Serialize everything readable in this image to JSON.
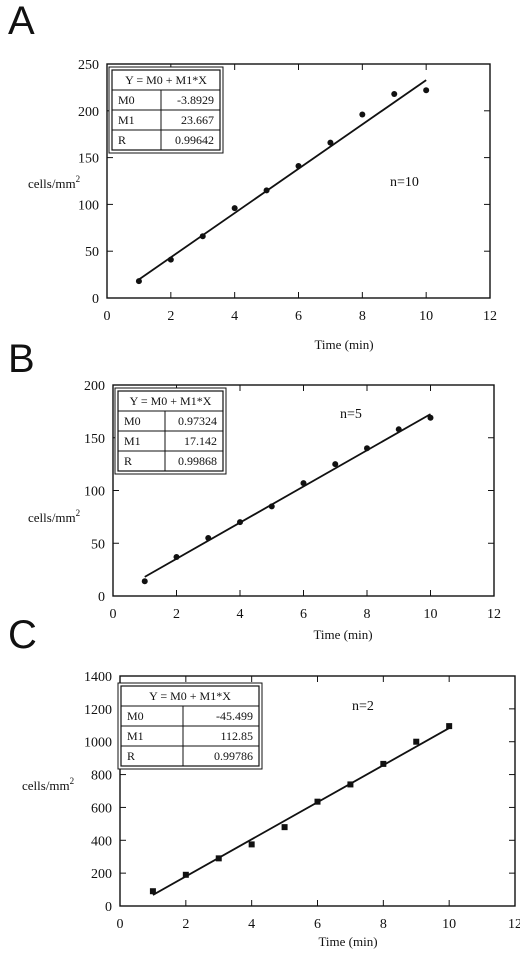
{
  "chart_data": [
    {
      "panel": "A",
      "type": "scatter",
      "marker": "circle",
      "xlabel": "Time (min)",
      "ylabel": "cells/mm",
      "ylabel_sup": "2",
      "xlim": [
        0,
        12
      ],
      "ylim": [
        0,
        250
      ],
      "xticks": [
        0,
        2,
        4,
        6,
        8,
        10,
        12
      ],
      "yticks": [
        0,
        50,
        100,
        150,
        200,
        250
      ],
      "x": [
        1,
        2,
        3,
        4,
        5,
        6,
        7,
        8,
        9,
        10
      ],
      "y": [
        18,
        41,
        66,
        96,
        115,
        141,
        166,
        196,
        218,
        222
      ],
      "fit": {
        "intercept": -3.8929,
        "slope": 23.667
      },
      "table": {
        "header": "Y = M0 + M1*X",
        "rows": [
          [
            "M0",
            "-3.8929"
          ],
          [
            "M1",
            "23.667"
          ],
          [
            "R",
            "0.99642"
          ]
        ]
      },
      "annotation": "n=10"
    },
    {
      "panel": "B",
      "type": "scatter",
      "marker": "circle",
      "xlabel": "Time (min)",
      "ylabel": "cells/mm",
      "ylabel_sup": "2",
      "xlim": [
        0,
        12
      ],
      "ylim": [
        0,
        200
      ],
      "xticks": [
        0,
        2,
        4,
        6,
        8,
        10,
        12
      ],
      "yticks": [
        0,
        50,
        100,
        150,
        200
      ],
      "x": [
        1,
        2,
        3,
        4,
        5,
        6,
        7,
        8,
        9,
        10
      ],
      "y": [
        14,
        37,
        55,
        70,
        85,
        107,
        125,
        140,
        158,
        169
      ],
      "fit": {
        "intercept": 0.97324,
        "slope": 17.142
      },
      "table": {
        "header": "Y = M0 + M1*X",
        "rows": [
          [
            "M0",
            "0.97324"
          ],
          [
            "M1",
            "17.142"
          ],
          [
            "R",
            "0.99868"
          ]
        ]
      },
      "annotation": "n=5"
    },
    {
      "panel": "C",
      "type": "scatter",
      "marker": "square",
      "xlabel": "Time (min)",
      "ylabel": "cells/mm",
      "ylabel_sup": "2",
      "xlim": [
        0,
        12
      ],
      "ylim": [
        0,
        1400
      ],
      "xticks": [
        0,
        2,
        4,
        6,
        8,
        10,
        12
      ],
      "yticks": [
        0,
        200,
        400,
        600,
        800,
        1000,
        1200,
        1400
      ],
      "x": [
        1,
        2,
        3,
        4,
        5,
        6,
        7,
        8,
        9,
        10
      ],
      "y": [
        90,
        190,
        290,
        375,
        480,
        635,
        740,
        865,
        1000,
        1095
      ],
      "fit": {
        "intercept": -45.499,
        "slope": 112.85
      },
      "table": {
        "header": "Y = M0 + M1*X",
        "rows": [
          [
            "M0",
            "-45.499"
          ],
          [
            "M1",
            "112.85"
          ],
          [
            "R",
            "0.99786"
          ]
        ]
      },
      "annotation": "n=2"
    }
  ]
}
